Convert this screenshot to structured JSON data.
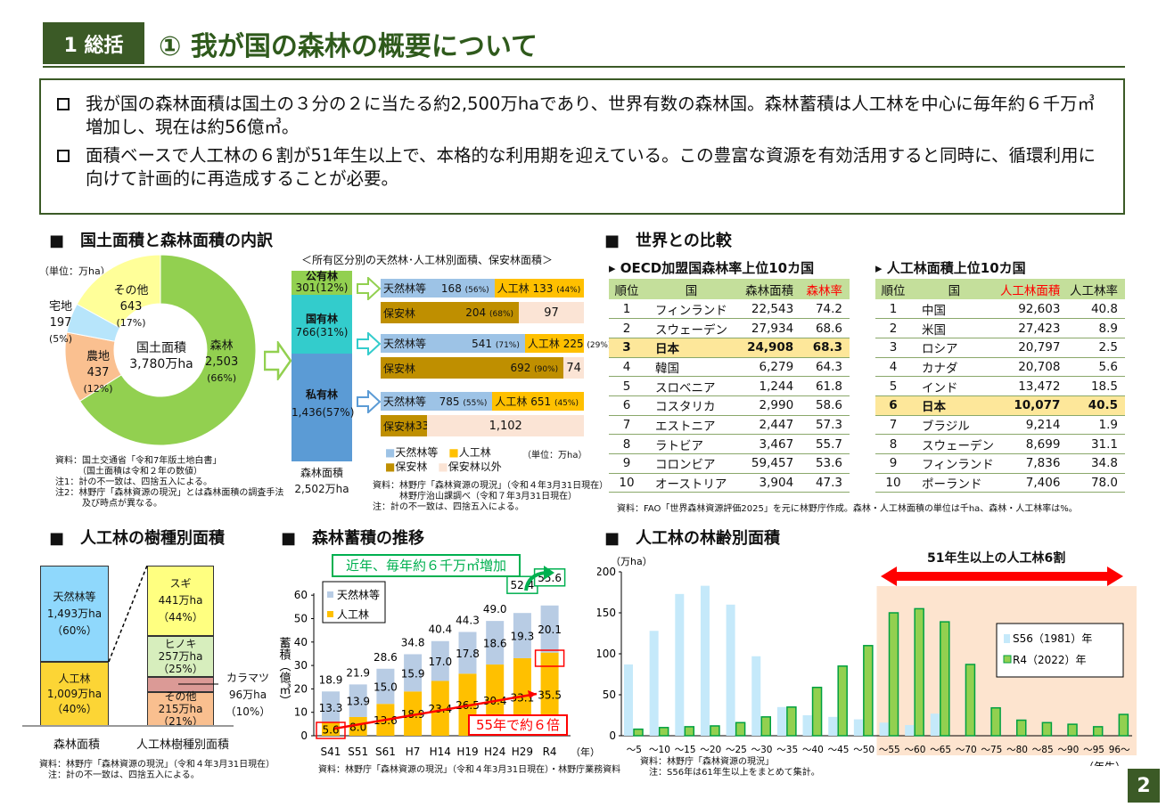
{
  "header": {
    "section": "1 総括",
    "title": "① 我が国の森林の概要について",
    "page": "2"
  },
  "summary": [
    "我が国の森林面積は国土の３分の２に当たる約2,500万haであり、世界有数の森林国。森林蓄積は人工林を中心に毎年約６千万㎥増加し、現在は約56億㎥。",
    "面積ベースで人工林の６割が51年生以上で、本格的な利用期を迎えている。この豊富な資源を有効活用すると同時に、循環利用に向けて計画的に再造成することが必要。"
  ],
  "land": {
    "heading": "■　国土面積と森林面積の内訳",
    "unit": "（単位：万ha）",
    "center_label": "国土面積",
    "center_value": "3,780万ha",
    "slices": [
      {
        "label": "森林",
        "value": "2,503",
        "pct": "(66%)",
        "share": 66,
        "color": "#92d050"
      },
      {
        "label": "農地",
        "value": "437",
        "pct": "(12%)",
        "share": 12,
        "color": "#fac090"
      },
      {
        "label": "宅地",
        "value": "197",
        "pct": "(5%)",
        "share": 5,
        "color": "#b7e5fb"
      },
      {
        "label": "その他",
        "value": "643",
        "pct": "(17%)",
        "share": 17,
        "color": "#ffff99"
      }
    ],
    "notes": "資料：国土交通省「令和7年版土地白書」\n　　　（国土面積は令和２年の数値）\n注1：計の不一致は、四捨五入による。\n注2：林野庁「森林資源の現況」とは森林面積の調査手法\n　　　及び時点が異なる。"
  },
  "ownership": {
    "subtitle": "＜所有区分別の天然林･人工林別面積、保安林面積＞",
    "total_label": "森林面積",
    "total_value": "2,502万ha",
    "groups": [
      {
        "name": "公有林",
        "value": "301(12%)",
        "color": "#92d050",
        "natural": "168",
        "natural_pct": "(56%)",
        "natural_share": 56,
        "planted_label": "人工林",
        "planted": "133",
        "planted_pct": "(44%)",
        "protect": "204",
        "protect_pct": "(68%)",
        "protect_share": 68,
        "other": "97"
      },
      {
        "name": "国有林",
        "value": "766(31%)",
        "color": "#33cccc",
        "natural": "541",
        "natural_pct": "(71%)",
        "natural_share": 71,
        "planted_label": "人工林",
        "planted": "225",
        "planted_pct": "(29%)",
        "protect": "692",
        "protect_pct": "(90%)",
        "protect_share": 90,
        "other": "74"
      },
      {
        "name": "私有林",
        "value": "1,436(57%)",
        "color": "#5b9bd5",
        "natural": "785",
        "natural_pct": "(55%)",
        "natural_share": 55,
        "planted_label": "人工林",
        "planted": "651",
        "planted_pct": "(45%)",
        "protect": "334",
        "protect_pct": "(23%)",
        "protect_share": 23,
        "other": "1,102"
      }
    ],
    "natural_label": "天然林等",
    "protect_label": "保安林",
    "legend": [
      "天然林等",
      "人工林",
      "保安林",
      "保安林以外"
    ],
    "unit": "（単位：万ha）",
    "notes": "資料：林野庁「森林資源の現況」（令和４年3月31日現在）\n　　　林野庁治山課調べ（令和７年3月31日現在）\n注：計の不一致は、四捨五入による。"
  },
  "world": {
    "heading": "■　世界との比較",
    "oecd": {
      "caption": "OECD加盟国森林率上位10カ国",
      "columns": [
        "順位",
        "国",
        "森林面積",
        "森林率"
      ],
      "rows": [
        [
          "1",
          "フィンランド",
          "22,543",
          "74.2"
        ],
        [
          "2",
          "スウェーデン",
          "27,934",
          "68.6"
        ],
        [
          "3",
          "日本",
          "24,908",
          "68.3"
        ],
        [
          "4",
          "韓国",
          "6,279",
          "64.3"
        ],
        [
          "5",
          "スロベニア",
          "1,244",
          "61.8"
        ],
        [
          "6",
          "コスタリカ",
          "2,990",
          "58.6"
        ],
        [
          "7",
          "エストニア",
          "2,447",
          "57.3"
        ],
        [
          "8",
          "ラトビア",
          "3,467",
          "55.7"
        ],
        [
          "9",
          "コロンビア",
          "59,457",
          "53.6"
        ],
        [
          "10",
          "オーストリア",
          "3,904",
          "47.3"
        ]
      ]
    },
    "planted": {
      "caption": "人工林面積上位10カ国",
      "columns": [
        "順位",
        "国",
        "人工林面積",
        "人工林率"
      ],
      "rows": [
        [
          "1",
          "中国",
          "92,603",
          "40.8"
        ],
        [
          "2",
          "米国",
          "27,423",
          "8.9"
        ],
        [
          "3",
          "ロシア",
          "20,797",
          "2.5"
        ],
        [
          "4",
          "カナダ",
          "20,708",
          "5.6"
        ],
        [
          "5",
          "インド",
          "13,472",
          "18.5"
        ],
        [
          "6",
          "日本",
          "10,077",
          "40.5"
        ],
        [
          "7",
          "ブラジル",
          "9,214",
          "1.9"
        ],
        [
          "8",
          "スウェーデン",
          "8,699",
          "31.1"
        ],
        [
          "9",
          "フィンランド",
          "7,836",
          "34.8"
        ],
        [
          "10",
          "ポーランド",
          "7,406",
          "78.0"
        ]
      ]
    },
    "note": "資料：FAO「世界森林資源評価2025」を元に林野庁作成。森林・人工林面積の単位は千ha、森林・人工林率は%。"
  },
  "species": {
    "heading": "■　人工林の樹種別面積",
    "left": [
      {
        "label": "天然林等",
        "value": "1,493万ha",
        "pct": "（60%）",
        "color": "#8fd8fc"
      },
      {
        "label": "人工林",
        "value": "1,009万ha",
        "pct": "（40%）",
        "color": "#fcd535"
      }
    ],
    "right": [
      {
        "label": "スギ",
        "value": "441万ha",
        "pct": "（44%）",
        "color": "#ffff80"
      },
      {
        "label": "ヒノキ",
        "value": "257万ha",
        "pct": "（25%）",
        "color": "#d7eebd"
      },
      {
        "label": "カラマツ",
        "value": "96万ha",
        "pct": "（10%）",
        "color": "#db9a96"
      },
      {
        "label": "その他",
        "value": "215万ha",
        "pct": "（21%）",
        "color": "#f9bf8f"
      }
    ],
    "xlabels": [
      "森林面積",
      "人工林樹種別面積"
    ],
    "notes": "資料：林野庁「森林資源の現況」（令和４年3月31日現在）\n　注：計の不一致は、四捨五入による。"
  },
  "stock": {
    "heading": "■　森林蓄積の推移",
    "callout": "近年、毎年約６千万㎥増加",
    "ratio_callout": "55年で約６倍",
    "notes": "資料：林野庁「森林資源の現況」（令和４年3月31日現在）・林野庁業務資料"
  },
  "age": {
    "heading": "■　人工林の林齢別面積",
    "banner": "51年生以上の人工林6割",
    "notes": "資料：林野庁「森林資源の現況」\n　注：S56年は61年生以上をまとめて集計。"
  },
  "chart_data": [
    {
      "type": "bar",
      "stacked": true,
      "categories": [
        "S41",
        "S51",
        "S61",
        "H7",
        "H14",
        "H19",
        "H24",
        "H29",
        "R4"
      ],
      "xlabel_suffix": "（年）",
      "ylabel": "蓄積（億㎥）",
      "ylim": [
        0,
        60
      ],
      "yticks": [
        0,
        10,
        20,
        30,
        40,
        50,
        60
      ],
      "series": [
        {
          "name": "人工林",
          "color": "#ffc000",
          "values": [
            5.6,
            8.0,
            13.6,
            18.9,
            23.4,
            26.5,
            30.4,
            33.1,
            35.5
          ]
        },
        {
          "name": "天然林等",
          "color": "#b8cce4",
          "values": [
            13.3,
            13.9,
            15.0,
            15.9,
            17.0,
            17.8,
            18.6,
            19.3,
            20.1
          ]
        }
      ],
      "totals": [
        "18.9",
        "21.9",
        "28.6",
        "34.8",
        "40.4",
        "44.3",
        "49.0",
        "52.4",
        "55.6"
      ],
      "legend": "top-left"
    },
    {
      "type": "bar",
      "categories": [
        "～5",
        "～10",
        "～15",
        "～20",
        "～25",
        "～30",
        "～35",
        "～40",
        "～45",
        "～50",
        "～55",
        "～60",
        "～65",
        "～70",
        "～75",
        "～80",
        "～85",
        "～90",
        "～95",
        "96～"
      ],
      "xlabel": "（年生）",
      "ylabel": "（万ha）",
      "ylim": [
        0,
        200
      ],
      "yticks": [
        0,
        50,
        100,
        150,
        200
      ],
      "series": [
        {
          "name": "S56（1981）年",
          "color": "#c5e9fa",
          "values": [
            87,
            128,
            173,
            183,
            160,
            97,
            35,
            25,
            23,
            20,
            16,
            13,
            27,
            0,
            0,
            0,
            0,
            0,
            0,
            0
          ]
        },
        {
          "name": "R4（2022）年",
          "color": "#92d050",
          "values": [
            8,
            10,
            11,
            12,
            16,
            23,
            35,
            59,
            85,
            110,
            150,
            155,
            139,
            87,
            34,
            19,
            16,
            14,
            11,
            26
          ]
        }
      ],
      "highlight_from": "～55",
      "legend": "right"
    }
  ]
}
